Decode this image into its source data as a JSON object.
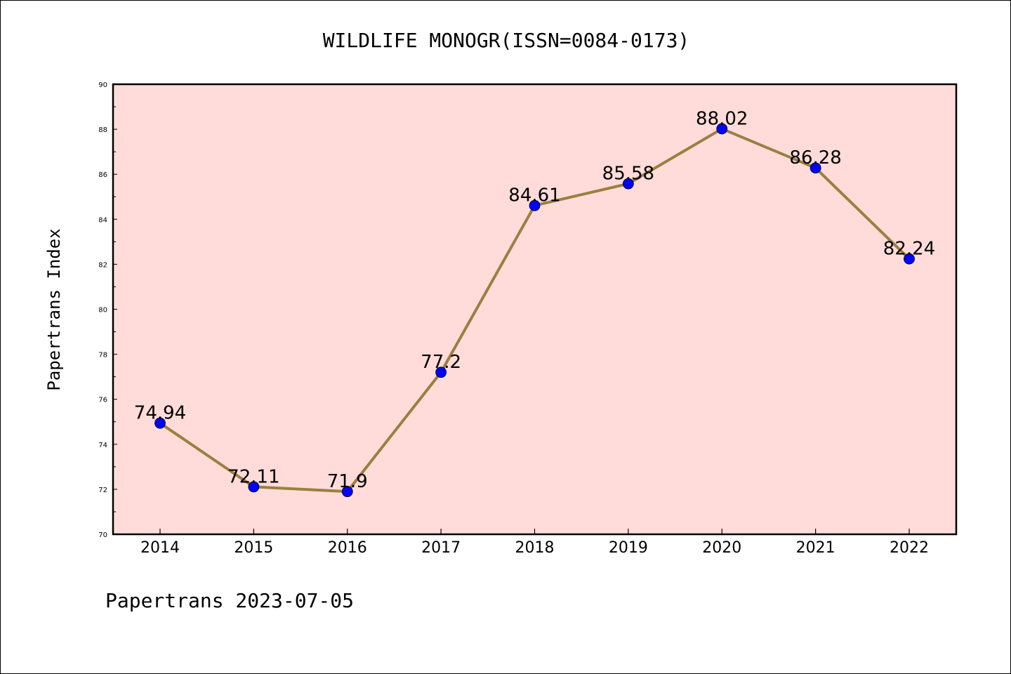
{
  "chart_data": {
    "type": "line",
    "title": "WILDLIFE MONOGR(ISSN=0084-0173)",
    "xlabel": "",
    "ylabel": "Papertrans Index",
    "categories": [
      "2014",
      "2015",
      "2016",
      "2017",
      "2018",
      "2019",
      "2020",
      "2021",
      "2022"
    ],
    "series": [
      {
        "values": [
          74.94,
          72.11,
          71.9,
          77.2,
          84.61,
          85.58,
          88.02,
          86.28,
          82.24
        ],
        "labels": [
          "74.94",
          "72.11",
          "71.9",
          "77.2",
          "84.61",
          "85.58",
          "88.02",
          "86.28",
          "82.24"
        ],
        "line_color": "#998040",
        "marker_color": "#0000ff"
      }
    ],
    "ylim": [
      70,
      90
    ],
    "yticks": [
      70,
      72,
      74,
      76,
      78,
      80,
      82,
      84,
      86,
      88,
      90
    ],
    "grid": false,
    "plot_background": "#ffdcd9"
  },
  "footer": {
    "text": "Papertrans 2023-07-05"
  }
}
